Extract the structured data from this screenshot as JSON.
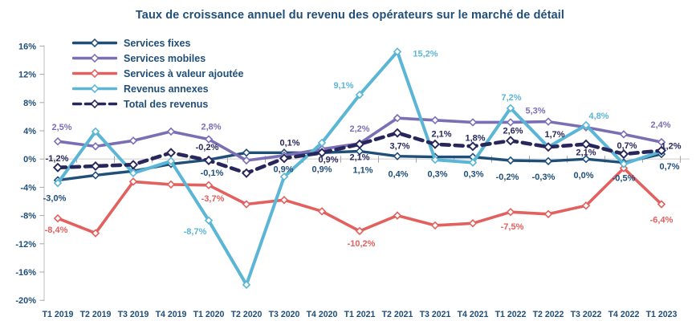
{
  "title": "Taux de croissance annuel du revenu des opérateurs sur le marché de détail",
  "colors": {
    "title_text": "#1F4E79",
    "axis_text": "#1F4E79",
    "gridline_zero": "#D9D9D9",
    "axis_line": "#C9C9C9",
    "tick_mark": "#A6A6A6"
  },
  "chart_data": {
    "type": "line",
    "title": "Taux de croissance annuel du revenu des opérateurs sur le marché de détail",
    "xlabel": "",
    "ylabel": "",
    "ylim": [
      -20,
      16
    ],
    "grid": "horizontal zero line only",
    "legend_position": "top-left inside plot",
    "y_ticks": [
      {
        "v": 16,
        "label": "16%"
      },
      {
        "v": 12,
        "label": "12%"
      },
      {
        "v": 8,
        "label": "8%"
      },
      {
        "v": 4,
        "label": "4%"
      },
      {
        "v": 0,
        "label": "0%"
      },
      {
        "v": -4,
        "label": "-4%"
      },
      {
        "v": -8,
        "label": "-8%"
      },
      {
        "v": -12,
        "label": "-12%"
      },
      {
        "v": -16,
        "label": "-16%"
      },
      {
        "v": -20,
        "label": "-20%"
      }
    ],
    "categories": [
      "T1 2019",
      "T2 2019",
      "T3 2019",
      "T4 2019",
      "T1 2020",
      "T2 2020",
      "T3 2020",
      "T4 2020",
      "T1 2021",
      "T2 2021",
      "T3 2021",
      "T4 2021",
      "T1 2022",
      "T2 2022",
      "T3 2022",
      "T4 2022",
      "T1 2023"
    ],
    "series": [
      {
        "id": "services-fixes",
        "name": "Services fixes",
        "color": "#1F4E79",
        "dashed": false,
        "width": 3.4,
        "values": [
          -3.0,
          -2.3,
          -1.7,
          -0.7,
          -0.1,
          0.9,
          0.9,
          0.9,
          1.1,
          0.4,
          0.3,
          0.3,
          -0.2,
          -0.3,
          0.0,
          -0.5,
          0.7
        ],
        "labels": [
          {
            "i": 0,
            "t": "-3,0%",
            "dx": -4,
            "dy": 26
          },
          {
            "i": 4,
            "t": "-0,1%",
            "dx": 4,
            "dy": 20
          },
          {
            "i": 6,
            "t": "0,9%",
            "dx": -1,
            "dy": 24
          },
          {
            "i": 7,
            "t": "0,9%",
            "dx": 0,
            "dy": 24
          },
          {
            "i": 8,
            "t": "1,1%",
            "dx": 4,
            "dy": 27
          },
          {
            "i": 9,
            "t": "0,4%",
            "dx": 1,
            "dy": 26
          },
          {
            "i": 10,
            "t": "0,3%",
            "dx": 3,
            "dy": 25
          },
          {
            "i": 11,
            "t": "0,3%",
            "dx": 1,
            "dy": 25
          },
          {
            "i": 12,
            "t": "-0,2%",
            "dx": -4,
            "dy": 24
          },
          {
            "i": 13,
            "t": "-0,3%",
            "dx": -6,
            "dy": 23
          },
          {
            "i": 14,
            "t": "0,0%",
            "dx": -3,
            "dy": 24
          },
          {
            "i": 15,
            "t": "-0,5%",
            "dx": 0,
            "dy": 23
          },
          {
            "i": 16,
            "t": "0,7%",
            "dx": 10,
            "dy": 19
          }
        ]
      },
      {
        "id": "services-mobiles",
        "name": "Services mobiles",
        "color": "#7A6FB5",
        "dashed": false,
        "width": 3.6,
        "values": [
          2.5,
          1.8,
          2.6,
          3.9,
          2.8,
          -0.2,
          0.5,
          1.4,
          2.2,
          5.8,
          5.5,
          5.2,
          5.2,
          5.3,
          4.5,
          3.5,
          2.4
        ],
        "labels": [
          {
            "i": 0,
            "t": "2,5%",
            "dx": 5,
            "dy": -14
          },
          {
            "i": 4,
            "t": "2,8%",
            "dx": 3,
            "dy": -12
          },
          {
            "i": 8,
            "t": "2,2%",
            "dx": 0,
            "dy": -15
          },
          {
            "i": 13,
            "t": "5,3%",
            "dx": -16,
            "dy": -10
          },
          {
            "i": 16,
            "t": "2,4%",
            "dx": -1,
            "dy": -18
          }
        ]
      },
      {
        "id": "services-valeur-ajoutee",
        "name": "Services à valeur ajoutée",
        "color": "#E2605E",
        "dashed": false,
        "width": 3.6,
        "values": [
          -8.4,
          -10.5,
          -3.2,
          -3.6,
          -3.7,
          -6.4,
          -5.8,
          -7.4,
          -10.2,
          -8.0,
          -9.4,
          -9.1,
          -7.5,
          -7.8,
          -6.6,
          -1.3,
          -6.4
        ],
        "labels": [
          {
            "i": 0,
            "t": "-8,4%",
            "dx": -2,
            "dy": 18
          },
          {
            "i": 4,
            "t": "-3,7%",
            "dx": 5,
            "dy": 20
          },
          {
            "i": 8,
            "t": "-10,2%",
            "dx": 2,
            "dy": 19
          },
          {
            "i": 12,
            "t": "-7,5%",
            "dx": 2,
            "dy": 22
          },
          {
            "i": 16,
            "t": "-6,4%",
            "dx": 0,
            "dy": 23
          }
        ]
      },
      {
        "id": "revenus-annexes",
        "name": "Revenus annexes",
        "color": "#5BB6D6",
        "dashed": false,
        "width": 4,
        "values": [
          -3.4,
          3.9,
          -2.0,
          -0.3,
          -8.7,
          -17.8,
          -2.5,
          2.3,
          9.1,
          15.2,
          -0.1,
          -0.5,
          7.2,
          1.7,
          4.8,
          -0.7,
          1.1
        ],
        "labels": [
          {
            "i": 4,
            "t": "-8,7%",
            "dx": -17,
            "dy": 17
          },
          {
            "i": 8,
            "t": "9,1%",
            "dx": -20,
            "dy": -8
          },
          {
            "i": 9,
            "t": "15,2%",
            "dx": 35,
            "dy": 6
          },
          {
            "i": 12,
            "t": "7,2%",
            "dx": 1,
            "dy": -10
          },
          {
            "i": 14,
            "t": "4,8%",
            "dx": 16,
            "dy": -8
          }
        ]
      },
      {
        "id": "total-des-revenus",
        "name": "Total des revenus",
        "color": "#27275B",
        "dashed": true,
        "width": 4.6,
        "values": [
          -1.2,
          -1.0,
          -0.8,
          0.9,
          -0.2,
          -2.0,
          0.1,
          0.9,
          2.1,
          3.7,
          2.1,
          1.8,
          2.6,
          1.7,
          2.1,
          0.7,
          1.2
        ],
        "labels": [
          {
            "i": 0,
            "t": "-1,2%",
            "dx": -1,
            "dy": -8
          },
          {
            "i": 4,
            "t": "-0,2%",
            "dx": -2,
            "dy": -13
          },
          {
            "i": 6,
            "t": "0,1%",
            "dx": 7,
            "dy": -16
          },
          {
            "i": 7,
            "t": "0,9%",
            "dx": 8,
            "dy": 12
          },
          {
            "i": 8,
            "t": "2,1%",
            "dx": 0,
            "dy": 20
          },
          {
            "i": 9,
            "t": "3,7%",
            "dx": 3,
            "dy": 20
          },
          {
            "i": 10,
            "t": "2,1%",
            "dx": 8,
            "dy": -9
          },
          {
            "i": 11,
            "t": "1,8%",
            "dx": 3,
            "dy": -7
          },
          {
            "i": 12,
            "t": "2,6%",
            "dx": 3,
            "dy": -9
          },
          {
            "i": 13,
            "t": "1,7%",
            "dx": 8,
            "dy": -12
          },
          {
            "i": 14,
            "t": "2,1%",
            "dx": 0,
            "dy": 14
          },
          {
            "i": 15,
            "t": "0,7%",
            "dx": 4,
            "dy": -7
          },
          {
            "i": 16,
            "t": "1,2%",
            "dx": 12,
            "dy": -2
          }
        ]
      }
    ]
  }
}
